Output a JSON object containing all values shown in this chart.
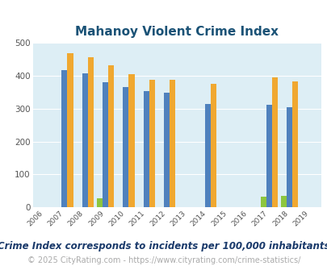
{
  "title": "Mahanoy Violent Crime Index",
  "subtitle": "Crime Index corresponds to incidents per 100,000 inhabitants",
  "footer": "© 2025 CityRating.com - https://www.cityrating.com/crime-statistics/",
  "years": [
    2006,
    2007,
    2008,
    2009,
    2010,
    2011,
    2012,
    2013,
    2014,
    2015,
    2016,
    2017,
    2018,
    2019
  ],
  "mahanoy": {
    "2009": 28,
    "2017": 32,
    "2018": 36
  },
  "pennsylvania": {
    "2007": 416,
    "2008": 407,
    "2009": 380,
    "2010": 366,
    "2011": 352,
    "2012": 347,
    "2014": 313,
    "2017": 311,
    "2018": 305
  },
  "national": {
    "2007": 467,
    "2008": 455,
    "2009": 431,
    "2010": 405,
    "2011": 387,
    "2012": 387,
    "2014": 376,
    "2017": 394,
    "2018": 381
  },
  "bar_width": 0.28,
  "color_mahanoy": "#8dc63f",
  "color_pennsylvania": "#4f81bd",
  "color_national": "#f0a830",
  "bg_color": "#ddeef5",
  "ylim": [
    0,
    500
  ],
  "yticks": [
    0,
    100,
    200,
    300,
    400,
    500
  ],
  "title_color": "#1a5276",
  "title_fontsize": 11,
  "legend_fontsize": 8.5,
  "subtitle_fontsize": 8.5,
  "subtitle_color": "#1a3a6b",
  "footer_fontsize": 7,
  "footer_color": "#aaaaaa"
}
